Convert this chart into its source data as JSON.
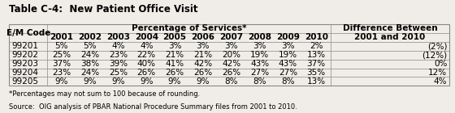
{
  "title": "Table C-4:  New Patient Office Visit",
  "col_header_top": "Percentage of Services*",
  "col_header_right": "Difference Between\n2001 and 2010",
  "col_header_left": "E/M Code",
  "years": [
    "2001",
    "2002",
    "2003",
    "2004",
    "2005",
    "2006",
    "2007",
    "2008",
    "2009",
    "2010"
  ],
  "rows": [
    {
      "code": "99201",
      "values": [
        "5%",
        "5%",
        "4%",
        "4%",
        "3%",
        "3%",
        "3%",
        "3%",
        "3%",
        "2%"
      ],
      "diff": "(2%)"
    },
    {
      "code": "99202",
      "values": [
        "25%",
        "24%",
        "23%",
        "22%",
        "21%",
        "21%",
        "20%",
        "19%",
        "19%",
        "13%"
      ],
      "diff": "(12%)"
    },
    {
      "code": "99203",
      "values": [
        "37%",
        "38%",
        "39%",
        "40%",
        "41%",
        "42%",
        "42%",
        "43%",
        "43%",
        "37%"
      ],
      "diff": "0%"
    },
    {
      "code": "99204",
      "values": [
        "23%",
        "24%",
        "25%",
        "26%",
        "26%",
        "26%",
        "26%",
        "27%",
        "27%",
        "35%"
      ],
      "diff": "12%"
    },
    {
      "code": "99205",
      "values": [
        "9%",
        "9%",
        "9%",
        "9%",
        "9%",
        "9%",
        "8%",
        "8%",
        "8%",
        "13%"
      ],
      "diff": "4%"
    }
  ],
  "footnote1": "*Percentages may not sum to 100 because of rounding.",
  "footnote2": "Source:  OIG analysis of PBAR National Procedure Summary files from 2001 to 2010.",
  "bg_color": "#f0ede8",
  "header_bg": "#d0ccc6",
  "table_line_color": "#888888",
  "font_size": 7.5,
  "title_font_size": 8.5
}
